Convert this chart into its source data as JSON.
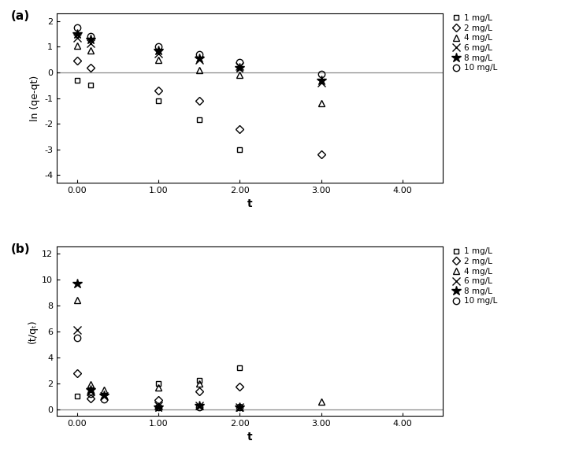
{
  "title_a": "(a)",
  "title_b": "(b)",
  "xlabel": "t",
  "ylabel_a": "ln (qe-qt)",
  "ylabel_b": "(t/qₜ)",
  "xlim_a": [
    -0.25,
    4.5
  ],
  "ylim_a": [
    -4.3,
    2.3
  ],
  "xlim_b": [
    -0.25,
    4.5
  ],
  "ylim_b": [
    -0.5,
    12.5
  ],
  "xticks_a": [
    0.0,
    1.0,
    2.0,
    3.0,
    4.0
  ],
  "yticks_a": [
    -4,
    -3,
    -2,
    -1,
    0,
    1,
    2
  ],
  "xticks_b": [
    0.0,
    1.0,
    2.0,
    3.0,
    4.0
  ],
  "yticks_b": [
    0,
    2,
    4,
    6,
    8,
    10,
    12
  ],
  "xtick_labels_a": [
    "0.00",
    "1.00",
    "2.00",
    "3.00",
    "4.00"
  ],
  "xtick_labels_b": [
    "0.00",
    "1.00",
    "2.00",
    "3.00",
    "4.00"
  ],
  "legend_labels": [
    "1 mg/L",
    "2 mg/L",
    "4 mg/L",
    "6 mg/L",
    "8 mg/L",
    "10 mg/L"
  ],
  "pfo_data": {
    "1mg": {
      "x": [
        0.0,
        0.17,
        1.0,
        1.5,
        2.0,
        3.0
      ],
      "y": [
        -0.3,
        -0.5,
        -1.1,
        -1.85,
        -3.0,
        null
      ]
    },
    "2mg": {
      "x": [
        0.0,
        0.17,
        1.0,
        1.5,
        2.0,
        3.0
      ],
      "y": [
        0.45,
        0.2,
        -0.7,
        -1.1,
        -2.2,
        -3.2
      ]
    },
    "4mg": {
      "x": [
        0.0,
        0.17,
        1.0,
        1.5,
        2.0,
        3.0
      ],
      "y": [
        1.05,
        0.85,
        0.5,
        0.1,
        -0.1,
        -1.2
      ]
    },
    "6mg": {
      "x": [
        0.0,
        0.17,
        1.0,
        1.5,
        2.0,
        3.0
      ],
      "y": [
        1.35,
        1.15,
        0.75,
        0.5,
        0.25,
        -0.4
      ]
    },
    "8mg": {
      "x": [
        0.0,
        0.17,
        1.0,
        1.5,
        2.0,
        3.0
      ],
      "y": [
        1.5,
        1.3,
        0.85,
        0.55,
        0.2,
        -0.3
      ]
    },
    "10mg": {
      "x": [
        0.0,
        0.17,
        1.0,
        1.5,
        2.0,
        3.0
      ],
      "y": [
        1.75,
        1.4,
        1.0,
        0.7,
        0.4,
        -0.05
      ]
    }
  },
  "pso_data": {
    "1mg": {
      "x": [
        0.0,
        0.17,
        0.33,
        1.0,
        1.5,
        2.0,
        3.0
      ],
      "y": [
        1.0,
        1.3,
        null,
        2.0,
        2.2,
        3.2,
        null
      ]
    },
    "2mg": {
      "x": [
        0.0,
        0.17,
        0.33,
        1.0,
        1.5,
        2.0,
        3.0
      ],
      "y": [
        2.8,
        0.85,
        null,
        0.7,
        1.4,
        1.75,
        null
      ]
    },
    "4mg": {
      "x": [
        0.0,
        0.17,
        0.33,
        1.0,
        1.5,
        2.0,
        3.0
      ],
      "y": [
        8.4,
        1.9,
        1.5,
        1.7,
        2.0,
        null,
        0.6
      ]
    },
    "6mg": {
      "x": [
        0.0,
        0.17,
        0.33,
        1.0,
        1.5,
        2.0,
        3.0
      ],
      "y": [
        6.1,
        1.4,
        1.0,
        0.3,
        0.3,
        0.2,
        null
      ]
    },
    "8mg": {
      "x": [
        0.0,
        0.17,
        0.33,
        1.0,
        1.5,
        2.0,
        3.0
      ],
      "y": [
        9.7,
        1.5,
        1.1,
        0.2,
        0.3,
        0.15,
        null
      ]
    },
    "10mg": {
      "x": [
        0.0,
        0.17,
        0.33,
        1.0,
        1.5,
        2.0,
        3.0
      ],
      "y": [
        5.5,
        1.2,
        0.8,
        0.2,
        0.2,
        0.15,
        null
      ]
    }
  },
  "bg_color": "#ffffff",
  "marker_color": "#000000"
}
